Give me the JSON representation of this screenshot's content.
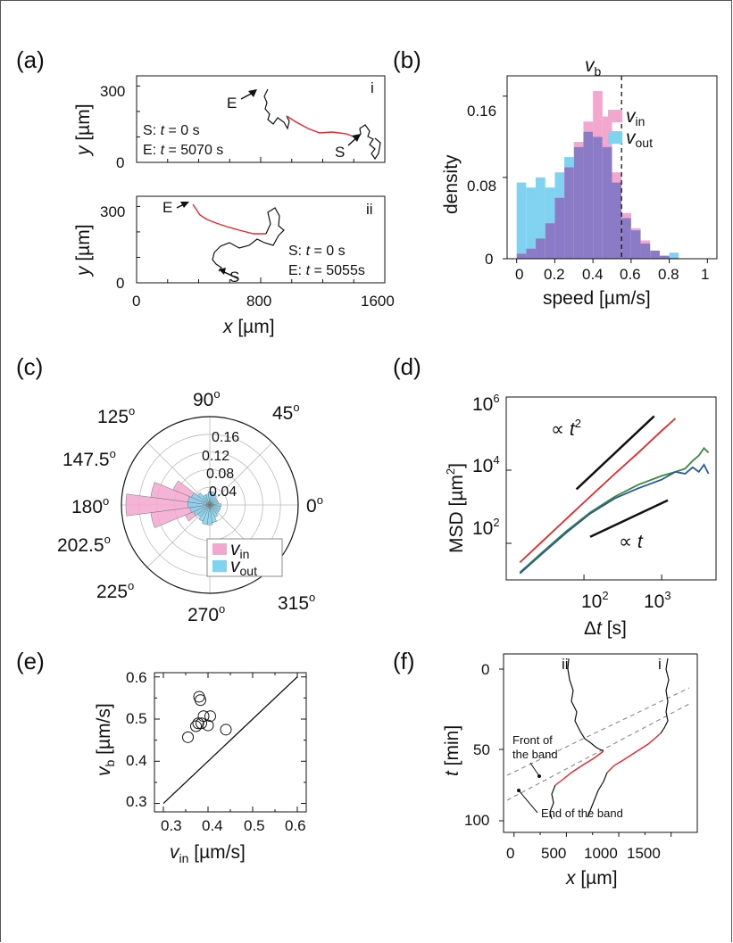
{
  "panel_labels": [
    "(a)",
    "(b)",
    "(c)",
    "(d)",
    "(e)",
    "(f)"
  ],
  "colors": {
    "in": "#f3a7cf",
    "out": "#7fd3f0",
    "overlap": "#8b7bc7",
    "red": "#e8272a",
    "green": "#3a8a3a",
    "blue": "#2957a4"
  },
  "chart_data": [
    {
      "panel": "(a)",
      "type": "line",
      "subplots": [
        {
          "roman": "i",
          "start_label": "S",
          "end_label": "E",
          "info": [
            "S: t = 0 s",
            "E: t = 5070 s"
          ]
        },
        {
          "roman": "ii",
          "start_label": "S",
          "end_label": "E",
          "info": [
            "S: t = 0 s",
            "E: t = 5055s"
          ]
        }
      ],
      "xlabel": "x [µm]",
      "ylabel": "y [µm]",
      "xlim": [
        0,
        1600
      ],
      "ylim": [
        0,
        300
      ],
      "xticks": [
        "0",
        "800",
        "1600"
      ],
      "yticks": [
        "0",
        "300"
      ]
    },
    {
      "panel": "(b)",
      "type": "bar",
      "bin_edges": [
        0,
        0.05,
        0.1,
        0.15,
        0.2,
        0.25,
        0.3,
        0.35,
        0.4,
        0.45,
        0.5,
        0.55,
        0.6,
        0.65,
        0.7,
        0.75,
        0.8,
        0.85
      ],
      "series": [
        {
          "name": "v_in",
          "values": [
            0.005,
            0.01,
            0.02,
            0.035,
            0.06,
            0.09,
            0.115,
            0.135,
            0.165,
            0.14,
            0.085,
            0.045,
            0.03,
            0.018,
            0.008,
            0.003,
            0.001
          ]
        },
        {
          "name": "v_out",
          "values": [
            0.075,
            0.07,
            0.08,
            0.07,
            0.085,
            0.1,
            0.11,
            0.125,
            0.12,
            0.11,
            0.075,
            0.04,
            0.028,
            0.015,
            0.008,
            0.003,
            0.006
          ]
        }
      ],
      "legend": [
        "v",
        "in",
        "v",
        "out"
      ],
      "xlabel": "speed [µm/s]",
      "ylabel": "density",
      "xlim": [
        -0.05,
        1.05
      ],
      "ylim": [
        0,
        0.18
      ],
      "xticks": [
        "0",
        "0.2",
        "0.4",
        "0.6",
        "0.8",
        "1"
      ],
      "yticks": [
        "0",
        "0.08",
        "0.16"
      ],
      "vline": 0.55,
      "vline_label": [
        "v",
        "b"
      ]
    },
    {
      "panel": "(c)",
      "type": "bar",
      "polar": true,
      "angle_labels": [
        "90",
        "45",
        "0",
        "315",
        "270",
        "225",
        "202.5",
        "180",
        "147.5",
        "125"
      ],
      "degree_mark": "o",
      "radial_ticks": [
        "0.04",
        "0.08",
        "0.12",
        "0.16"
      ],
      "rmax": 0.2,
      "bin_width_deg": 15,
      "series": [
        {
          "name": "v_in",
          "angles": [
            135,
            150,
            165,
            180,
            195,
            210,
            225,
            120,
            90,
            0
          ],
          "values": [
            0.02,
            0.09,
            0.135,
            0.19,
            0.135,
            0.06,
            0.03,
            0.02,
            0.015,
            0.01
          ]
        },
        {
          "name": "v_out",
          "angles": [
            0,
            15,
            30,
            45,
            60,
            75,
            90,
            105,
            120,
            135,
            150,
            165,
            180,
            195,
            210,
            225,
            240,
            255,
            270,
            285,
            300,
            315,
            330,
            345
          ],
          "values": [
            0.025,
            0.02,
            0.02,
            0.02,
            0.025,
            0.03,
            0.03,
            0.025,
            0.025,
            0.035,
            0.045,
            0.05,
            0.05,
            0.045,
            0.04,
            0.035,
            0.04,
            0.045,
            0.045,
            0.04,
            0.03,
            0.025,
            0.025,
            0.025
          ]
        }
      ],
      "legend": [
        "v",
        "in",
        "v",
        "out"
      ]
    },
    {
      "panel": "(d)",
      "type": "line",
      "log_x": true,
      "log_y": true,
      "xlabel": [
        "Δ",
        "t",
        " [s]"
      ],
      "ylabel": [
        "MSD [µm",
        "2",
        "]"
      ],
      "xlim": [
        10,
        5000
      ],
      "ylim": [
        10,
        1000000
      ],
      "xticks": [
        {
          "base": "10",
          "exp": "2"
        },
        {
          "base": "10",
          "exp": "3"
        }
      ],
      "yticks": [
        {
          "base": "10",
          "exp": "2"
        },
        {
          "base": "10",
          "exp": "4"
        },
        {
          "base": "10",
          "exp": "6"
        }
      ],
      "series": [
        {
          "name": "red",
          "x": [
            15,
            30,
            60,
            120,
            250,
            500,
            1000,
            1500
          ],
          "y": [
            30,
            120,
            480,
            1900,
            8000,
            30000,
            120000,
            260000
          ]
        },
        {
          "name": "green",
          "x": [
            15,
            30,
            60,
            120,
            250,
            500,
            1000,
            1500,
            2000,
            2500,
            3000,
            3500,
            4000
          ],
          "y": [
            16,
            60,
            220,
            700,
            1900,
            4000,
            7000,
            9000,
            11000,
            18000,
            25000,
            40000,
            30000
          ]
        },
        {
          "name": "blue",
          "x": [
            15,
            30,
            60,
            120,
            250,
            500,
            1000,
            1500,
            2000,
            2500,
            3000,
            3500,
            4000
          ],
          "y": [
            15,
            55,
            200,
            650,
            1700,
            3200,
            5500,
            9000,
            8000,
            12000,
            9000,
            14000,
            8000
          ]
        }
      ],
      "guides": [
        {
          "label": [
            "∝ ",
            "t",
            "2"
          ],
          "x": [
            80,
            800
          ],
          "y": [
            3000,
            300000
          ]
        },
        {
          "label": [
            "∝ ",
            "t"
          ],
          "x": [
            120,
            1200
          ],
          "y": [
            150,
            1500
          ]
        }
      ]
    },
    {
      "panel": "(e)",
      "type": "scatter",
      "x": [
        0.355,
        0.373,
        0.378,
        0.38,
        0.383,
        0.385,
        0.39,
        0.4,
        0.405,
        0.44
      ],
      "y": [
        0.457,
        0.483,
        0.49,
        0.553,
        0.545,
        0.49,
        0.507,
        0.485,
        0.507,
        0.475
      ],
      "line": {
        "x": [
          0.3,
          0.6
        ],
        "y": [
          0.3,
          0.6
        ]
      },
      "xlabel": [
        "v",
        "in",
        " [µm/s]"
      ],
      "ylabel": [
        "v",
        "b",
        " [µm/s]"
      ],
      "xlim": [
        0.28,
        0.62
      ],
      "ylim": [
        0.28,
        0.61
      ],
      "xticks": [
        "0.3",
        "0.4",
        "0.5",
        "0.6"
      ],
      "yticks": [
        "0.3",
        "0.4",
        "0.5",
        "0.6"
      ]
    },
    {
      "panel": "(f)",
      "type": "line",
      "xlabel": "x [µm]",
      "ylabel": "t [min]",
      "xlim": [
        -100,
        1750
      ],
      "ylim": [
        0,
        110
      ],
      "y_inverted": true,
      "xticks": [
        "0",
        "500",
        "1000",
        "1500"
      ],
      "yticks": [
        "0",
        "50",
        "100"
      ],
      "track_labels": [
        "ii",
        "i"
      ],
      "annotations": [
        "Front of the band",
        "End of the band"
      ],
      "annotation_lines": [
        [
          "Front of",
          "the band"
        ],
        [
          "End of the band"
        ]
      ]
    }
  ]
}
